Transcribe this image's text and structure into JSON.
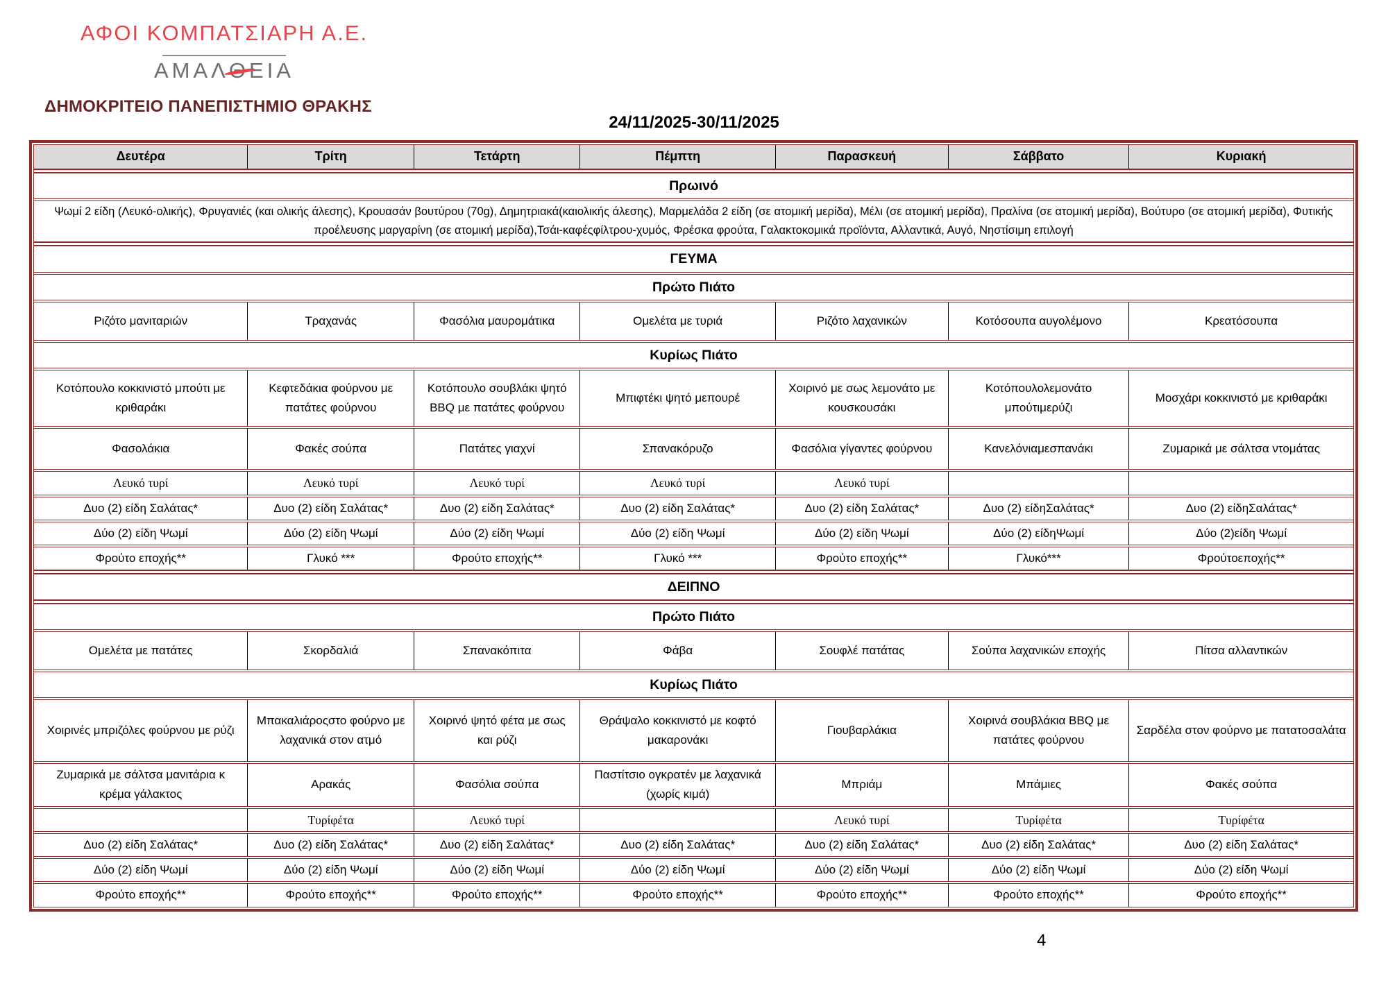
{
  "header": {
    "company": "ΑΦΟΙ ΚΟΜΠΑΤΣΙΑΡΗ Α.Ε.",
    "brand": "ΑΜΑΛΘΕΙΑ",
    "brand_prefix": "ΑΜΑΛ",
    "brand_theta": "Θ",
    "brand_suffix": "ΕΙΑ",
    "university": "ΔΗΜΟΚΡΙΤΕΙΟ ΠΑΝΕΠΙΣΤΗΜΙΟ ΘΡΑΚΗΣ",
    "date_range": "24/11/2025-30/11/2025"
  },
  "colors": {
    "logo_red": "#e8424a",
    "brand_gray": "#6d6e71",
    "title_maroon": "#632423",
    "maroon": "#8c2b2b",
    "header_bg": "#d9d9d9"
  },
  "page_number": "4",
  "menu": {
    "days": [
      "Δευτέρα",
      "Τρίτη",
      "Τετάρτη",
      "Πέμπτη",
      "Παρασκευή",
      "Σάββατο",
      "Κυριακή"
    ],
    "rows": [
      {
        "kind": "days",
        "name": "days",
        "heavy_bottom": true
      },
      {
        "kind": "section",
        "name": "breakfast-header",
        "text": "Πρωινό"
      },
      {
        "kind": "fulltext",
        "name": "breakfast-items",
        "text": "Ψωμί 2 είδη (Λευκό-ολικής), Φρυγανιές (και ολικής άλεσης), Κρουασάν βουτύρου (70g), Δημητριακά(καιολικής άλεσης), Μαρμελάδα 2 είδη (σε ατομική μερίδα), Μέλι (σε ατομική μερίδα), Πραλίνα (σε ατομική μερίδα), Βούτυρο (σε ατομική μερίδα), Φυτικής προέλευσης μαργαρίνη (σε ατομική μερίδα),Τσάι-καφέςφίλτρου-χυμός, Φρέσκα φρούτα, Γαλακτοκομικά προϊόντα, Αλλαντικά, Αυγό, Νηστίσιμη επιλογή"
      },
      {
        "kind": "section",
        "name": "lunch-header",
        "text": "ΓΕΥΜΑ",
        "heavy_top": true
      },
      {
        "kind": "section",
        "name": "lunch-first-course-header",
        "text": "Πρώτο Πιάτο"
      },
      {
        "kind": "items",
        "name": "lunch-first-course",
        "cells": [
          "Ριζότο μανιταριών",
          "Τραχανάς",
          "Φασόλια μαυρομάτικα",
          "Ομελέτα με τυριά",
          "Ριζότο λαχανικών",
          "Κοτόσουπα αυγολέμονο",
          "Κρεατόσουπα"
        ]
      },
      {
        "kind": "section",
        "name": "lunch-main-course-header",
        "text": "Κυρίως Πιάτο"
      },
      {
        "kind": "items",
        "name": "lunch-main-course",
        "cells": [
          "Κοτόπουλο κοκκινιστό μπούτι με κριθαράκι",
          "Κεφτεδάκια φούρνου με πατάτες φούρνου",
          "Κοτόπουλο σουβλάκι ψητό BBQ με πατάτες φούρνου",
          "Μπιφτέκι ψητό μεπουρέ",
          "Χοιρινό με σως λεμονάτο με κουσκουσάκι",
          "Κοτόπουλολεμονάτο μπούτιμερύζι",
          "Μοσχάρι κοκκινιστό με κριθαράκι"
        ]
      },
      {
        "kind": "items",
        "name": "lunch-sides",
        "cells": [
          "Φασολάκια",
          "Φακές σούπα",
          "Πατάτες γιαχνί",
          "Σπανακόρυζο",
          "Φασόλια γίγαντες φούρνου",
          "Κανελόνιαμεσπανάκι",
          "Ζυμαρικά με σάλτσα ντομάτας"
        ]
      },
      {
        "kind": "items",
        "name": "lunch-cheese",
        "serif": true,
        "cells": [
          "Λευκό τυρί",
          "Λευκό τυρί",
          "Λευκό τυρί",
          "Λευκό τυρί",
          "Λευκό τυρί",
          "",
          ""
        ]
      },
      {
        "kind": "items",
        "name": "lunch-salad",
        "cells": [
          "Δυο (2) είδη Σαλάτας*",
          "Δυο (2) είδη Σαλάτας*",
          "Δυο (2) είδη Σαλάτας*",
          "Δυο (2) είδη Σαλάτας*",
          "Δυο (2) είδη Σαλάτας*",
          "Δυο (2) είδηΣαλάτας*",
          "Δυο (2) είδηΣαλάτας*"
        ]
      },
      {
        "kind": "items",
        "name": "lunch-bread",
        "cells": [
          "Δύο (2) είδη Ψωμί",
          "Δύο (2) είδη Ψωμί",
          "Δύο (2) είδη Ψωμί",
          "Δύο (2) είδη Ψωμί",
          "Δύο (2) είδη Ψωμί",
          "Δύο (2) είδηΨωμί",
          "Δύο (2)είδη Ψωμί"
        ]
      },
      {
        "kind": "items",
        "name": "lunch-dessert",
        "cells": [
          "Φρούτο εποχής**",
          "Γλυκό ***",
          "Φρούτο εποχής**",
          "Γλυκό ***",
          "Φρούτο εποχής**",
          "Γλυκό***",
          "Φρούτοεποχής**"
        ]
      },
      {
        "kind": "section",
        "name": "dinner-header",
        "text": "ΔΕΙΠΝΟ",
        "heavy_top": true,
        "heavy_bottom": true
      },
      {
        "kind": "section",
        "name": "dinner-first-course-header",
        "text": "Πρώτο Πιάτο"
      },
      {
        "kind": "items",
        "name": "dinner-first-course",
        "cells": [
          "Ομελέτα με πατάτες",
          "Σκορδαλιά",
          "Σπανακόπιτα",
          "Φάβα",
          "Σουφλέ πατάτας",
          "Σούπα λαχανικών εποχής",
          "Πίτσα αλλαντικών"
        ]
      },
      {
        "kind": "section",
        "name": "dinner-main-course-header",
        "text": "Κυρίως Πιάτο"
      },
      {
        "kind": "items",
        "name": "dinner-main-course",
        "cells": [
          "Χοιρινές μπριζόλες φούρνου με ρύζι",
          "Μπακαλιάροςστο φούρνο με λαχανικά στον ατμό",
          "Χοιρινό ψητό φέτα με σως και ρύζι",
          "Θράψαλο κοκκινιστό με κοφτό μακαρονάκι",
          "Γιουβαρλάκια",
          "Χοιρινά σουβλάκια BBQ με πατάτες φούρνου",
          "Σαρδέλα στον φούρνο με πατατοσαλάτα"
        ]
      },
      {
        "kind": "items",
        "name": "dinner-sides",
        "cells": [
          "Ζυμαρικά με σάλτσα μανιτάρια κ κρέμα γάλακτος",
          "Αρακάς",
          "Φασόλια σούπα",
          "Παστίτσιο ογκρατέν με λαχανικά (χωρίς κιμά)",
          "Μπριάμ",
          "Μπάμιες",
          "Φακές σούπα"
        ]
      },
      {
        "kind": "items",
        "name": "dinner-cheese",
        "serif": true,
        "cells": [
          "",
          "Τυρίφέτα",
          "Λευκό τυρί",
          "",
          "Λευκό τυρί",
          "Τυρίφέτα",
          "Τυρίφέτα"
        ]
      },
      {
        "kind": "items",
        "name": "dinner-salad",
        "cells": [
          "Δυο (2) είδη Σαλάτας*",
          "Δυο (2) είδη Σαλάτας*",
          "Δυο (2) είδη Σαλάτας*",
          "Δυο (2) είδη Σαλάτας*",
          "Δυο (2) είδη Σαλάτας*",
          "Δυο (2) είδη Σαλάτας*",
          "Δυο (2) είδη Σαλάτας*"
        ]
      },
      {
        "kind": "items",
        "name": "dinner-bread",
        "cells": [
          "Δύο (2) είδη Ψωμί",
          "Δύο (2) είδη Ψωμί",
          "Δύο (2) είδη Ψωμί",
          "Δύο (2) είδη Ψωμί",
          "Δύο (2) είδη Ψωμί",
          "Δύο (2) είδη Ψωμί",
          "Δύο (2) είδη Ψωμί"
        ]
      },
      {
        "kind": "items",
        "name": "dinner-fruit",
        "cells": [
          "Φρούτο εποχής**",
          "Φρούτο εποχής**",
          "Φρούτο εποχής**",
          "Φρούτο εποχής**",
          "Φρούτο εποχής**",
          "Φρούτο εποχής**",
          "Φρούτο εποχής**"
        ]
      }
    ]
  }
}
